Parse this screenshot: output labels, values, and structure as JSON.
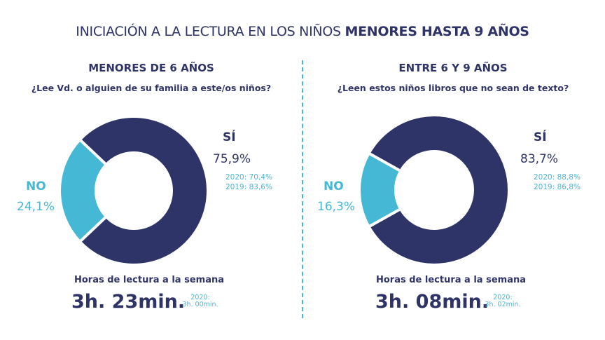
{
  "title": {
    "part1": "INICIACIÓN A LA LECTURA EN LOS NIÑOS ",
    "part2": "MENORES HASTA 9 AÑOS"
  },
  "colors": {
    "navy": "#2f3468",
    "cyan": "#45b8d6"
  },
  "chart_data": [
    {
      "type": "pie",
      "title": "MENORES DE 6 AÑOS",
      "subtitle": "¿Lee Vd. o alguien de su familia a este/os niños?",
      "categories": [
        "SÍ",
        "NO"
      ],
      "values": [
        75.9,
        24.1
      ],
      "value_labels": [
        "75,9%",
        "24,1%"
      ],
      "history": [
        "2020: 70,4%",
        "2019: 83,6%"
      ],
      "hours_label": "Horas de lectura a la semana",
      "hours_value": "3h. 23min.",
      "hours_prev_year": "2020:",
      "hours_prev_value": "3h. 00min."
    },
    {
      "type": "pie",
      "title": "ENTRE 6 Y 9 AÑOS",
      "subtitle": "¿Leen estos niños libros que no sean de texto?",
      "categories": [
        "SÍ",
        "NO"
      ],
      "values": [
        83.7,
        16.3
      ],
      "value_labels": [
        "83,7%",
        "16,3%"
      ],
      "history": [
        "2020: 88,8%",
        "2019: 86,8%"
      ],
      "hours_label": "Horas de lectura a la semana",
      "hours_value": "3h. 08min.",
      "hours_prev_year": "2020:",
      "hours_prev_value": "3h. 02min."
    }
  ]
}
